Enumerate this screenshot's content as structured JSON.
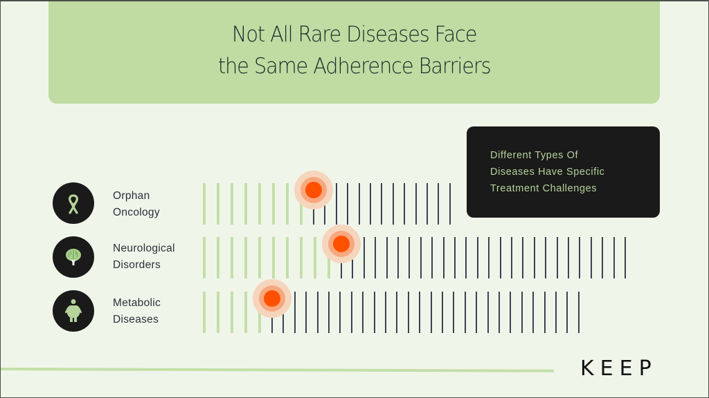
{
  "header": {
    "title_lines": [
      "Not All Rare Diseases Face",
      "the Same Adherence Barriers"
    ],
    "background": "#c0dca2"
  },
  "callout": {
    "lines": [
      "Different Types Of",
      "Diseases Have Specific",
      "Treatment Challenges"
    ]
  },
  "rows": [
    {
      "label_lines": [
        "Orphan",
        "Oncology"
      ],
      "icon": "ribbon-icon",
      "green_ticks": 8,
      "dark_ticks": 13,
      "marker_index": 8
    },
    {
      "label_lines": [
        "Neurological",
        "Disorders"
      ],
      "icon": "brain-icon",
      "green_ticks": 10,
      "dark_ticks": 26,
      "marker_index": 10
    },
    {
      "label_lines": [
        "Metabolic",
        "Diseases"
      ],
      "icon": "body-icon",
      "green_ticks": 5,
      "dark_ticks": 28,
      "marker_index": 5
    }
  ],
  "colors": {
    "background": "#f0f5ea",
    "green_tick": "#c3dfa8",
    "dark_tick": "#3b4150",
    "marker": "#ff5000",
    "callout_bg": "#1a1a1a",
    "callout_text": "#b5d39a"
  },
  "logo": {
    "text": "KEEP"
  }
}
